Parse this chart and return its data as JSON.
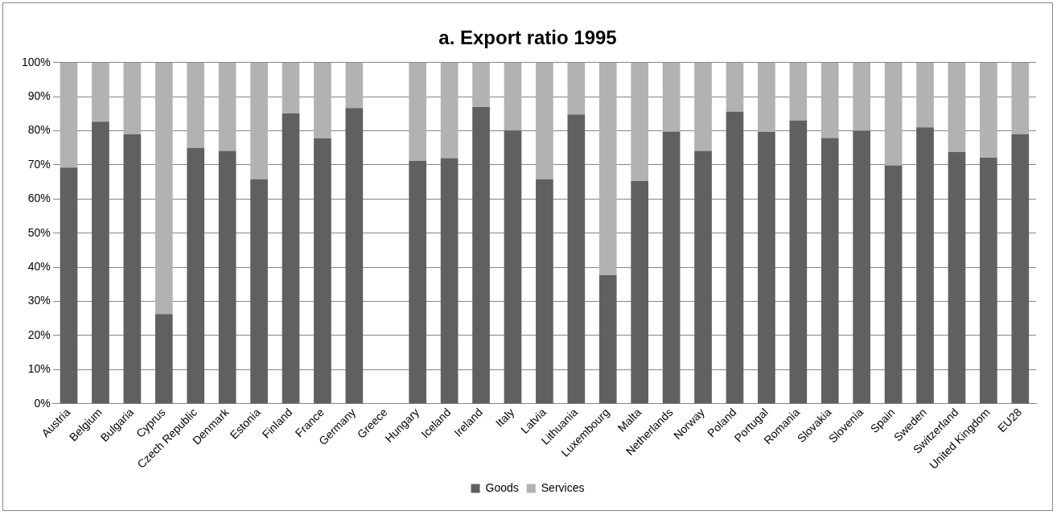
{
  "chart_data": {
    "type": "bar",
    "title": "a. Export ratio 1995",
    "stacked": true,
    "categories": [
      "Austria",
      "Belgium",
      "Bulgaria",
      "Cyprus",
      "Czech Republic",
      "Denmark",
      "Estonia",
      "Finland",
      "France",
      "Germany",
      "Greece",
      "Hungary",
      "Iceland",
      "Ireland",
      "Italy",
      "Latvia",
      "Lithuania",
      "Luxembourg",
      "Malta",
      "Netherlands",
      "Norway",
      "Poland",
      "Portugal",
      "Romania",
      "Slovakia",
      "Slovenia",
      "Spain",
      "Sweden",
      "Switzerland",
      "United Kingdom",
      "EU28"
    ],
    "series": [
      {
        "name": "Goods",
        "color": "#606060",
        "values": [
          69.2,
          82.7,
          79,
          26.3,
          75,
          74.1,
          65.8,
          85.1,
          77.8,
          86.7,
          null,
          71.2,
          72,
          87,
          80.1,
          65.8,
          84.8,
          37.7,
          65.3,
          79.8,
          74.1,
          85.6,
          79.7,
          83,
          77.9,
          80,
          69.9,
          81,
          73.8,
          72.1,
          79
        ]
      },
      {
        "name": "Services",
        "color": "#b2b2b2",
        "values": [
          30.8,
          17.3,
          21,
          73.7,
          25,
          25.9,
          34.2,
          14.9,
          22.2,
          13.3,
          null,
          28.8,
          28,
          13,
          19.9,
          34.2,
          15.2,
          62.3,
          34.7,
          20.2,
          25.9,
          14.4,
          20.3,
          17,
          22.1,
          20,
          30.1,
          19,
          26.2,
          27.9,
          21
        ]
      }
    ],
    "ylim": [
      0,
      100
    ],
    "yticks": [
      {
        "value": 0,
        "label": "0%"
      },
      {
        "value": 10,
        "label": "10%"
      },
      {
        "value": 20,
        "label": "20%"
      },
      {
        "value": 30,
        "label": "30%"
      },
      {
        "value": 40,
        "label": "40%"
      },
      {
        "value": 50,
        "label": "50%"
      },
      {
        "value": 60,
        "label": "60%"
      },
      {
        "value": 70,
        "label": "70%"
      },
      {
        "value": 80,
        "label": "80%"
      },
      {
        "value": 90,
        "label": "90%"
      },
      {
        "value": 100,
        "label": "100%"
      }
    ],
    "grid": "y",
    "legend": "bottom"
  }
}
